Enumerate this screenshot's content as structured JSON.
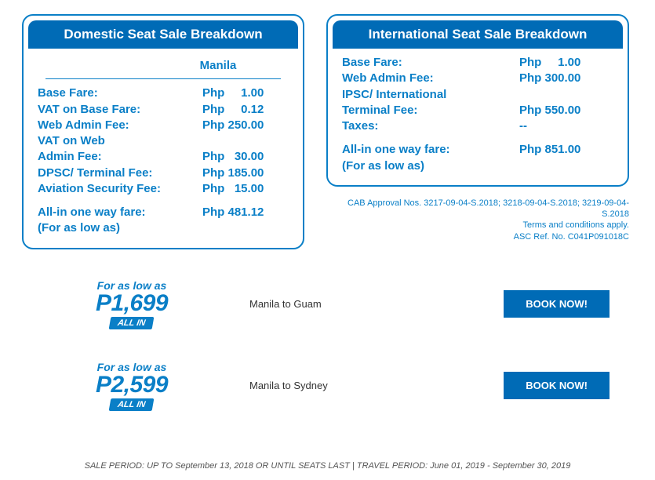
{
  "domestic": {
    "title": "Domestic Seat Sale Breakdown",
    "origin": "Manila",
    "rows": [
      {
        "label": "Base Fare:",
        "value": "Php     1.00"
      },
      {
        "label": "VAT on Base Fare:",
        "value": "Php     0.12"
      },
      {
        "label": "Web Admin Fee:",
        "value": "Php 250.00"
      },
      {
        "label": "VAT on Web",
        "value": ""
      },
      {
        "label": "Admin Fee:",
        "value": "Php   30.00"
      },
      {
        "label": "DPSC/ Terminal Fee:",
        "value": "Php 185.00"
      },
      {
        "label": "Aviation Security Fee:",
        "value": "Php   15.00"
      }
    ],
    "total_label1": "All-in one way fare:",
    "total_label2": "(For as low as)",
    "total_value": "Php 481.12"
  },
  "international": {
    "title": "International Seat Sale Breakdown",
    "rows": [
      {
        "label": "Base Fare:",
        "value": "Php     1.00"
      },
      {
        "label": "Web Admin Fee:",
        "value": "Php 300.00"
      },
      {
        "label": "IPSC/ International",
        "value": ""
      },
      {
        "label": "Terminal Fee:",
        "value": "Php 550.00"
      },
      {
        "label": "Taxes:",
        "value": "--"
      }
    ],
    "total_label1": "All-in one way fare:",
    "total_label2": "(For as low as)",
    "total_value": "Php 851.00"
  },
  "fineprint": {
    "line1": "CAB Approval Nos. 3217-09-04-S.2018; 3218-09-04-S.2018; 3219-09-04-S.2018",
    "line2": "Terms and conditions apply.",
    "line3": "ASC Ref. No. C041P091018C"
  },
  "promos": [
    {
      "forlow": "For as low as",
      "price": "P1,699",
      "badge": "ALL IN",
      "route": "Manila to Guam",
      "cta": "BOOK NOW!"
    },
    {
      "forlow": "For as low as",
      "price": "P2,599",
      "badge": "ALL IN",
      "route": "Manila to Sydney",
      "cta": "BOOK NOW!"
    }
  ],
  "footer": "SALE PERIOD: UP TO September 13, 2018 OR UNTIL SEATS LAST | TRAVEL PERIOD: June 01, 2019 - September 30, 2019",
  "colors": {
    "brand_blue": "#006bb6",
    "line_blue": "#0a7fc7",
    "bg": "#ffffff"
  }
}
